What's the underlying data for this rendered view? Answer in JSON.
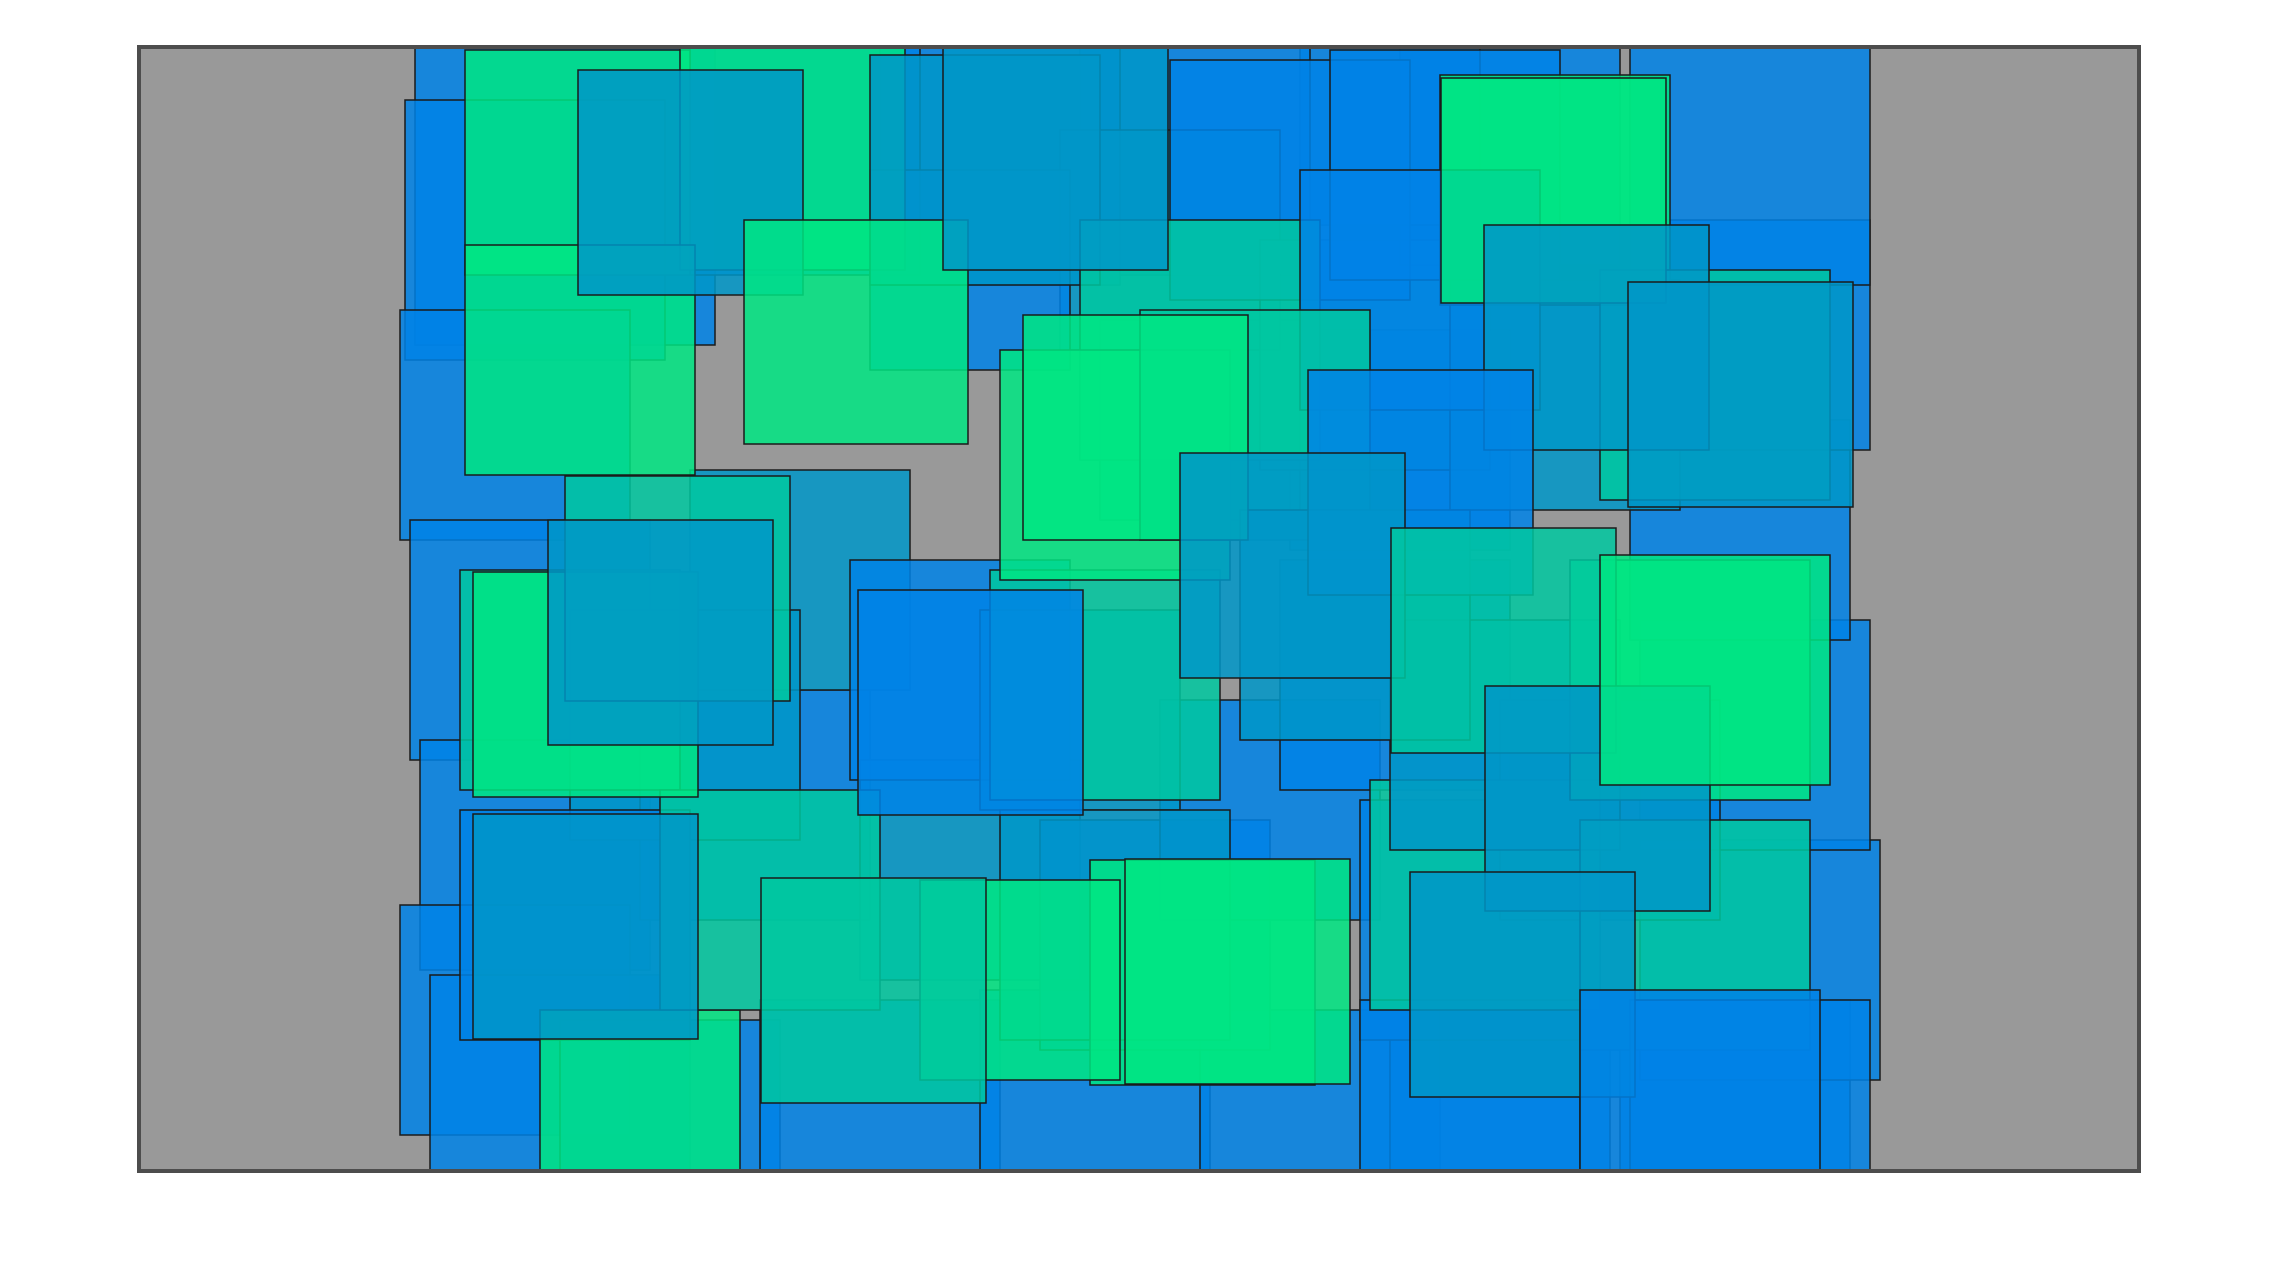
{
  "figure": {
    "background_color": "#ffffff",
    "panel_color": "#999999",
    "frame_color": "#4d4d4d",
    "square_stroke_color": "#1a1a1a",
    "square_opacity": 0.85,
    "palette": {
      "blue": "#0082e6",
      "blue_green": "#0096c8",
      "teal": "#00c8a0",
      "green": "#00e682"
    }
  }
}
